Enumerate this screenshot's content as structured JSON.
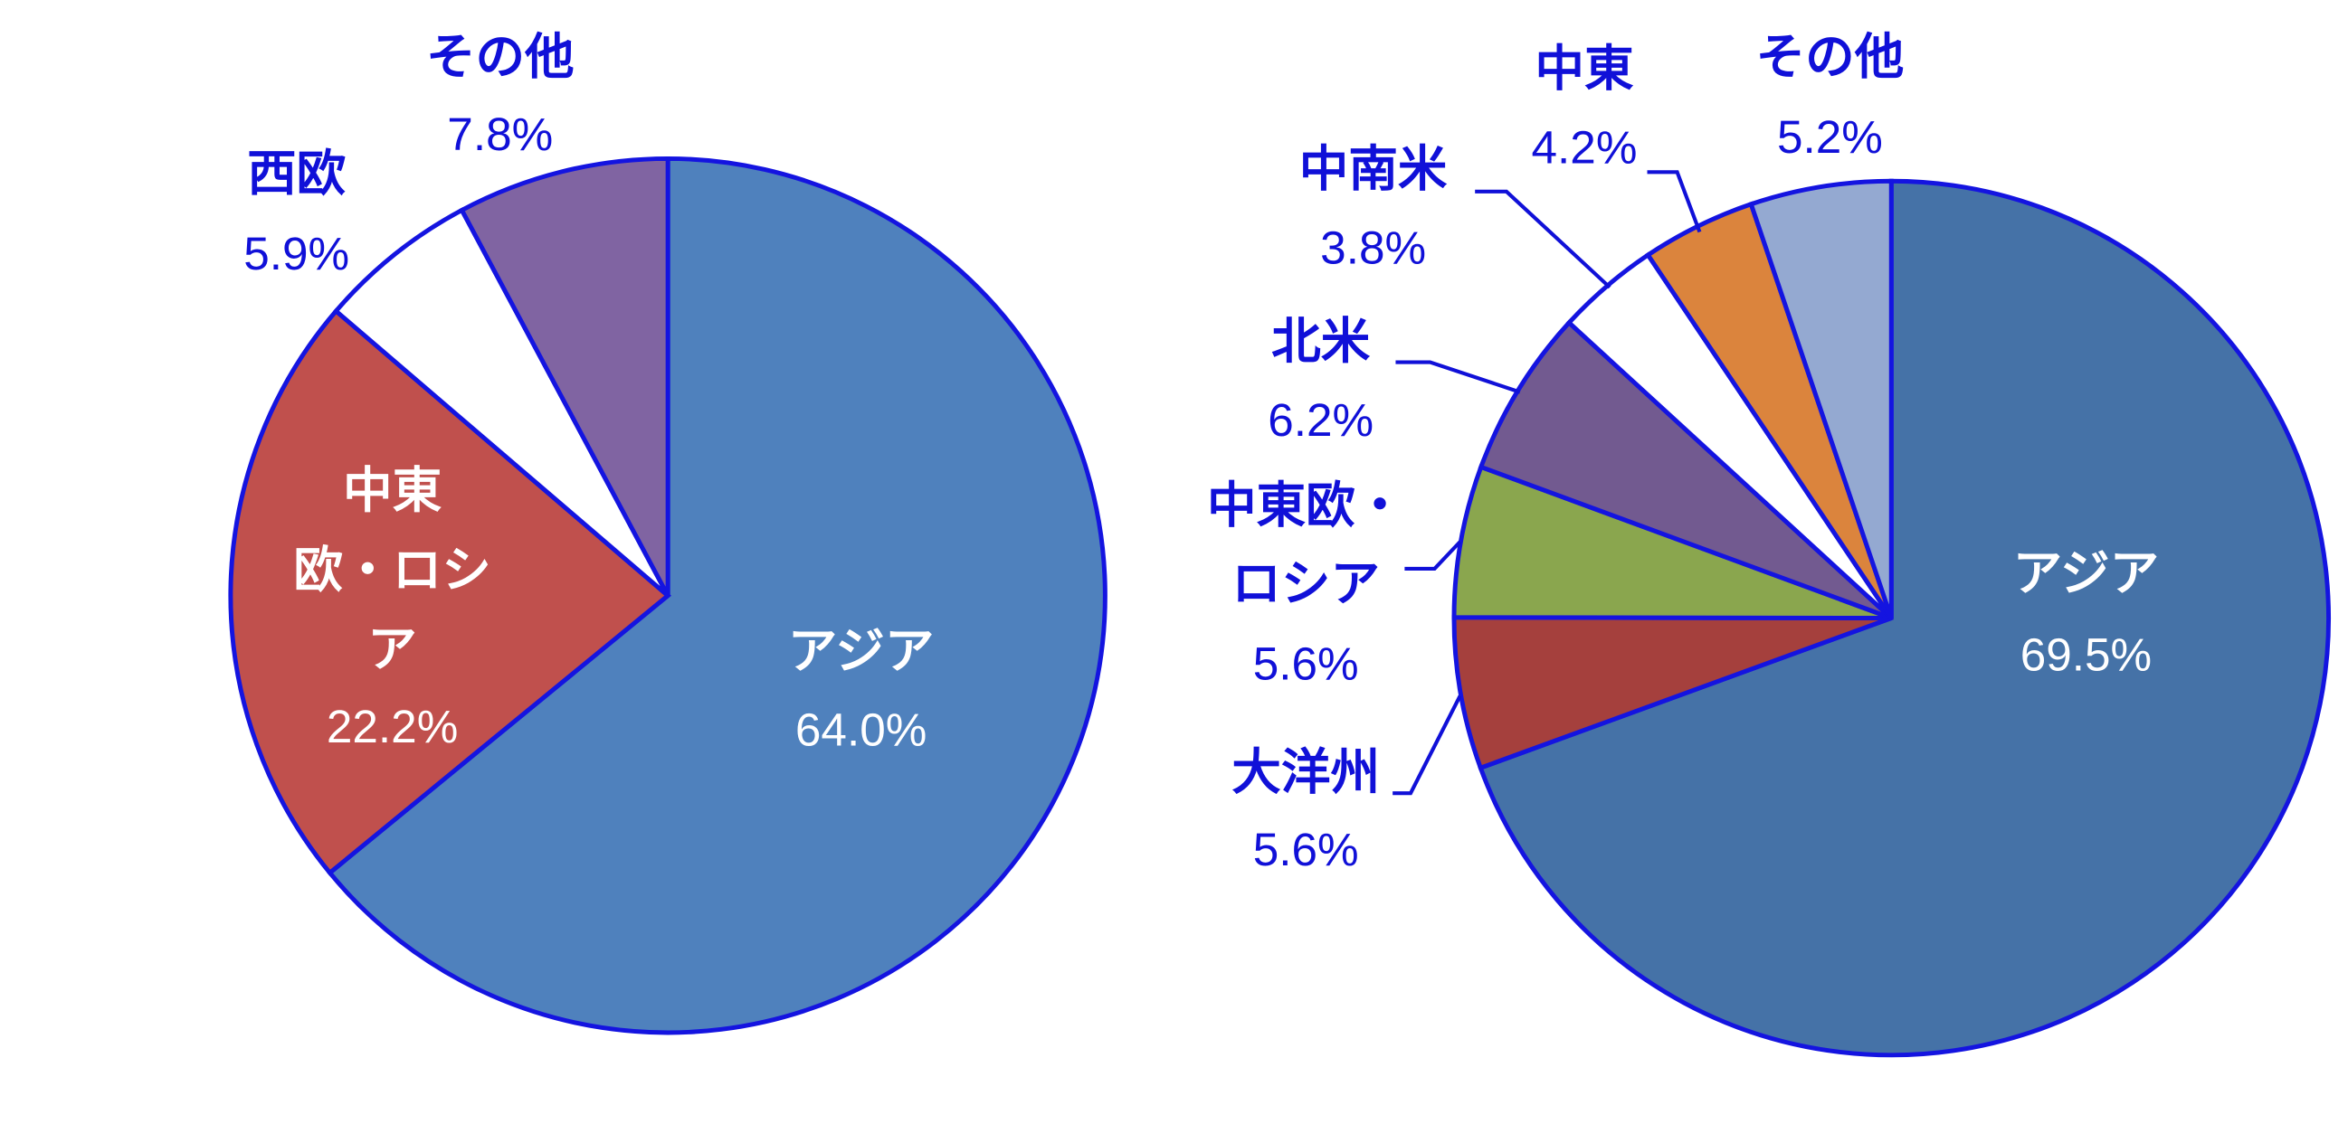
{
  "chart_data": [
    {
      "type": "pie",
      "categories": [
        "アジア",
        "中東欧・ロシア",
        "西欧",
        "その他"
      ],
      "values": [
        64.0,
        22.2,
        5.9,
        7.8
      ],
      "value_labels": [
        "64.0%",
        "22.2%",
        "5.9%",
        "7.8%"
      ],
      "colors": [
        "#4F81BD",
        "#C0504D",
        "#FFFFFF",
        "#8064A2"
      ]
    },
    {
      "type": "pie",
      "categories": [
        "アジア",
        "大洋州",
        "中東欧・ロシア",
        "北米",
        "中南米",
        "中東",
        "その他"
      ],
      "values": [
        69.5,
        5.6,
        5.6,
        6.2,
        3.8,
        4.2,
        5.2
      ],
      "value_labels": [
        "69.5%",
        "5.6%",
        "5.6%",
        "6.2%",
        "3.8%",
        "4.2%",
        "5.2%"
      ],
      "colors": [
        "#4572A7",
        "#A5403D",
        "#8AA64E",
        "#725A90",
        "#FFFFFF",
        "#DB843D",
        "#94A9D1"
      ]
    }
  ]
}
